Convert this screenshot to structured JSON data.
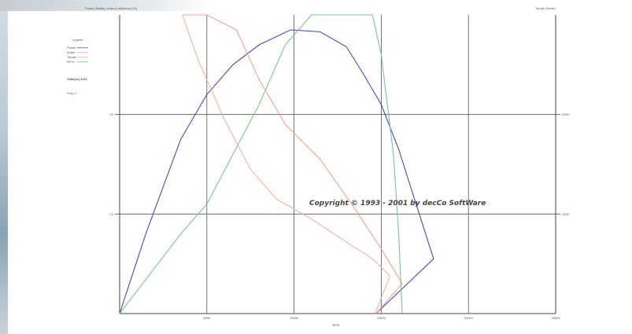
{
  "chart_data": {
    "type": "line",
    "title": "Power (Watts), amps & efficiency (%)",
    "right_title": "Torque (Nmm)",
    "xlabel": "RPM",
    "x_ticks": [
      "5000",
      "10000",
      "15000",
      "20000",
      "25000"
    ],
    "xlim": [
      0,
      25000
    ],
    "ylim": [
      0,
      3
    ],
    "left_ticks": [
      "10",
      "20"
    ],
    "right_ticks": [
      "1000",
      "2000"
    ],
    "legend": {
      "title": "Legend",
      "entries": [
        "Power",
        "Amps",
        "Torque",
        "Eff %"
      ],
      "extra": [
        "Volts(cc) 8.00",
        "Prop 0"
      ]
    },
    "annotation": "Copyright © 1993 - 2001 by decCo SoftWare",
    "series": [
      {
        "name": "Power",
        "color": "#4a4ab8",
        "points": [
          [
            0,
            0
          ],
          [
            1500,
            0.8
          ],
          [
            3500,
            1.75
          ],
          [
            5000,
            2.2
          ],
          [
            6500,
            2.5
          ],
          [
            8000,
            2.7
          ],
          [
            9800,
            2.85
          ],
          [
            11500,
            2.83
          ],
          [
            13000,
            2.68
          ],
          [
            14000,
            2.4
          ],
          [
            15000,
            2.1
          ],
          [
            16000,
            1.65
          ],
          [
            17000,
            1.1
          ],
          [
            18000,
            0.55
          ],
          [
            14700,
            0
          ]
        ]
      },
      {
        "name": "Eff %",
        "color": "#7cc48f",
        "points": [
          [
            0,
            0
          ],
          [
            3500,
            0.8
          ],
          [
            5000,
            1.1
          ],
          [
            6500,
            1.6
          ],
          [
            8000,
            2.1
          ],
          [
            9500,
            2.7
          ],
          [
            11000,
            3.0
          ],
          [
            12000,
            3.0
          ],
          [
            13500,
            3.0
          ],
          [
            14500,
            3.0
          ],
          [
            15000,
            2.6
          ],
          [
            15700,
            1.6
          ],
          [
            16000,
            0.8
          ],
          [
            16200,
            0
          ]
        ]
      },
      {
        "name": "Amps",
        "color": "#f0a08c",
        "points": [
          [
            3600,
            3.0
          ],
          [
            5000,
            3.0
          ],
          [
            6700,
            2.85
          ],
          [
            8000,
            2.35
          ],
          [
            9500,
            1.9
          ],
          [
            11500,
            1.55
          ],
          [
            13500,
            1.05
          ],
          [
            15000,
            0.65
          ],
          [
            16200,
            0.3
          ],
          [
            14700,
            0
          ]
        ]
      },
      {
        "name": "Torque",
        "color": "#f4b0a0",
        "points": [
          [
            3600,
            3.0
          ],
          [
            4500,
            2.55
          ],
          [
            6000,
            1.95
          ],
          [
            7500,
            1.45
          ],
          [
            9000,
            1.15
          ],
          [
            11000,
            0.95
          ],
          [
            13000,
            0.72
          ],
          [
            14500,
            0.55
          ],
          [
            15500,
            0.38
          ],
          [
            14650,
            0
          ]
        ]
      }
    ]
  }
}
